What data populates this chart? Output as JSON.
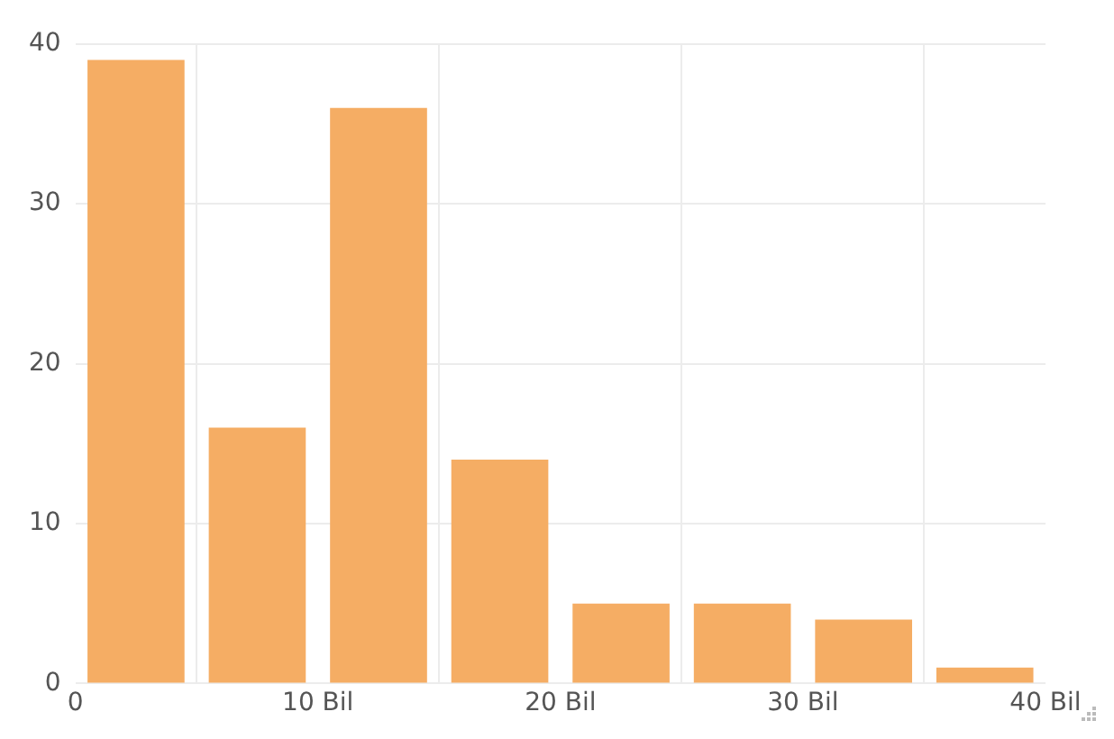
{
  "chart_data": {
    "type": "histogram",
    "bins": [
      0,
      5,
      10,
      15,
      20,
      25,
      30,
      35,
      40
    ],
    "values": [
      39,
      16,
      36,
      14,
      5,
      5,
      4,
      1
    ],
    "color": "#f5ad64",
    "xlim": [
      0,
      40
    ],
    "xticks": [
      0,
      {
        "value": 10,
        "label": "10 Bil"
      },
      {
        "value": 20,
        "label": "20 Bil"
      },
      {
        "value": 30,
        "label": "30 Bil"
      },
      {
        "value": 40,
        "label": "40 Bil"
      }
    ],
    "ylim": [
      0,
      40
    ],
    "yticks": [
      0,
      10,
      20,
      30,
      40
    ],
    "grid": true,
    "legend": false
  }
}
